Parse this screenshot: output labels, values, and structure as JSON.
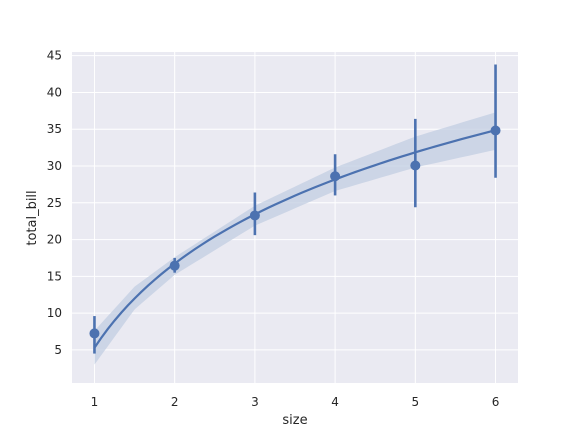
{
  "chart_data": {
    "type": "scatter",
    "title": "",
    "xlabel": "size",
    "ylabel": "total_bill",
    "xlim": [
      0.72,
      6.28
    ],
    "ylim": [
      0.5,
      45.5
    ],
    "grid": true,
    "legend": "none",
    "x_ticks": [
      1,
      2,
      3,
      4,
      5,
      6
    ],
    "y_ticks": [
      5,
      10,
      15,
      20,
      25,
      30,
      35,
      40,
      45
    ],
    "colors": {
      "background": "#eaeaf2",
      "grid": "#ffffff",
      "series": "#4c72b0",
      "band": "#c2cde2",
      "text": "#262626"
    },
    "points": [
      {
        "x": 1,
        "y": 7.24,
        "ci_low": 4.5,
        "ci_high": 9.6
      },
      {
        "x": 2,
        "y": 16.45,
        "ci_low": 15.5,
        "ci_high": 17.5
      },
      {
        "x": 3,
        "y": 23.28,
        "ci_low": 20.6,
        "ci_high": 26.4
      },
      {
        "x": 4,
        "y": 28.61,
        "ci_low": 26.0,
        "ci_high": 31.6
      },
      {
        "x": 5,
        "y": 30.07,
        "ci_low": 24.4,
        "ci_high": 36.4
      },
      {
        "x": 6,
        "y": 34.83,
        "ci_low": 28.4,
        "ci_high": 43.8
      }
    ],
    "fit": {
      "model": "logarithmic",
      "intercept": 5.3,
      "slope": 16.5,
      "band": [
        {
          "x": 1.0,
          "low": 3.0,
          "high": 7.6
        },
        {
          "x": 1.5,
          "low": 10.5,
          "high": 13.6
        },
        {
          "x": 2.0,
          "low": 15.2,
          "high": 17.6
        },
        {
          "x": 3.0,
          "low": 21.9,
          "high": 24.6
        },
        {
          "x": 4.0,
          "low": 26.6,
          "high": 29.8
        },
        {
          "x": 5.0,
          "low": 29.8,
          "high": 34.0
        },
        {
          "x": 6.0,
          "low": 32.2,
          "high": 37.3
        }
      ]
    }
  }
}
